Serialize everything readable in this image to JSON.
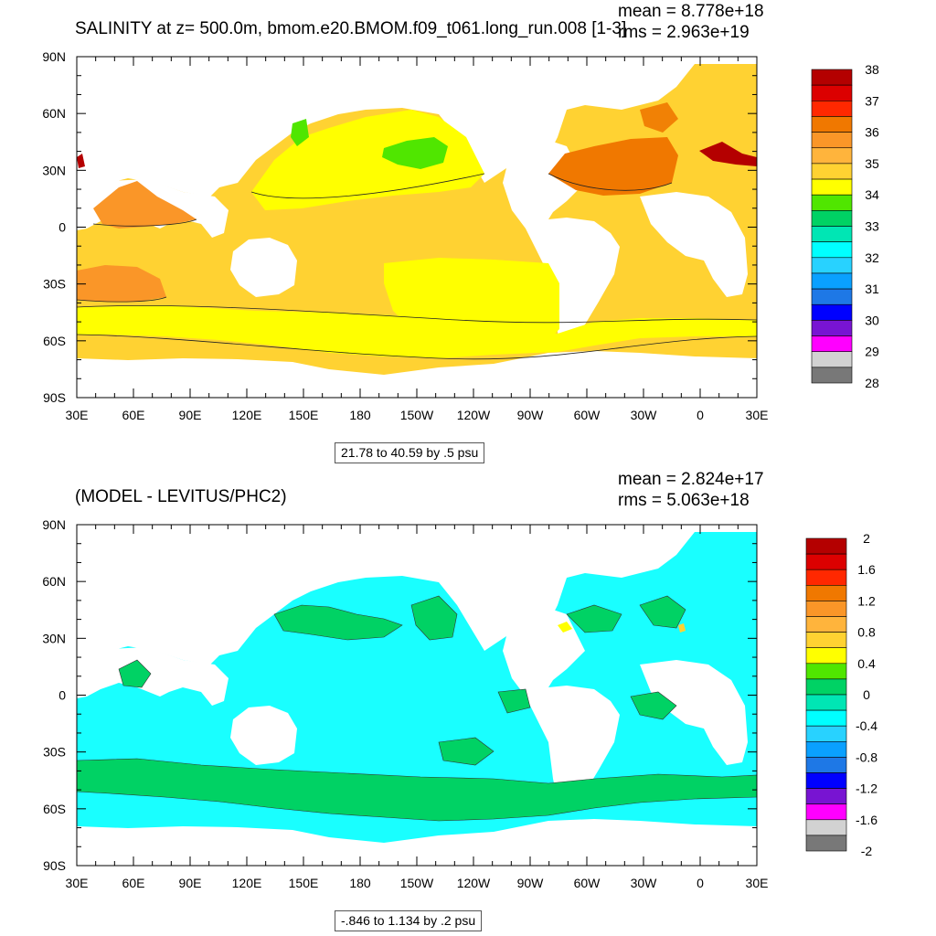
{
  "chart_data": [
    {
      "type": "heatmap",
      "title": "SALINITY at z= 500.0m, bmom.e20.BMOM.f09_t061.long_run.008 [1-3]",
      "stats": {
        "mean": "mean = 8.778e+18",
        "rms": "rms = 2.963e+19"
      },
      "xticks": [
        "30E",
        "60E",
        "90E",
        "120E",
        "150E",
        "180",
        "150W",
        "120W",
        "90W",
        "60W",
        "30W",
        "0",
        "30E"
      ],
      "yticks": [
        "90N",
        "60N",
        "30N",
        "0",
        "30S",
        "60S",
        "90S"
      ],
      "ylim": [
        -90,
        90
      ],
      "range_label": "21.78 to 40.59 by .5 psu",
      "colorbar": {
        "colors": [
          "#b40000",
          "#dc0000",
          "#ff2800",
          "#f07800",
          "#fa9628",
          "#ffb43c",
          "#ffd232",
          "#ffff00",
          "#50e600",
          "#00d264",
          "#00e6b4",
          "#00ffff",
          "#28d2ff",
          "#0aa0ff",
          "#1e78e6",
          "#0000ff",
          "#7814d2",
          "#ff00ff",
          "#d2d2d2",
          "#787878"
        ],
        "labels": [
          "38",
          "37",
          "36",
          "35",
          "34",
          "33",
          "32",
          "31",
          "30",
          "29",
          "28"
        ]
      }
    },
    {
      "type": "heatmap",
      "title": "(MODEL - LEVITUS/PHC2)",
      "stats": {
        "mean": "mean = 2.824e+17",
        "rms": "rms = 5.063e+18"
      },
      "xticks": [
        "30E",
        "60E",
        "90E",
        "120E",
        "150E",
        "180",
        "150W",
        "120W",
        "90W",
        "60W",
        "30W",
        "0",
        "30E"
      ],
      "yticks": [
        "90N",
        "60N",
        "30N",
        "0",
        "30S",
        "60S",
        "90S"
      ],
      "ylim": [
        -90,
        90
      ],
      "range_label": "-.846 to 1.134 by .2 psu",
      "colorbar": {
        "colors": [
          "#b40000",
          "#dc0000",
          "#ff2800",
          "#f07800",
          "#fa9628",
          "#ffb43c",
          "#ffd232",
          "#ffff00",
          "#50e600",
          "#00d264",
          "#00e6b4",
          "#00ffff",
          "#28d2ff",
          "#0aa0ff",
          "#1e78e6",
          "#0000ff",
          "#7814d2",
          "#ff00ff",
          "#d2d2d2",
          "#787878"
        ],
        "labels": [
          "2",
          "1.6",
          "1.2",
          "0.8",
          "0.4",
          "0",
          "-0.4",
          "-0.8",
          "-1.2",
          "-1.6",
          "-2"
        ]
      }
    }
  ]
}
